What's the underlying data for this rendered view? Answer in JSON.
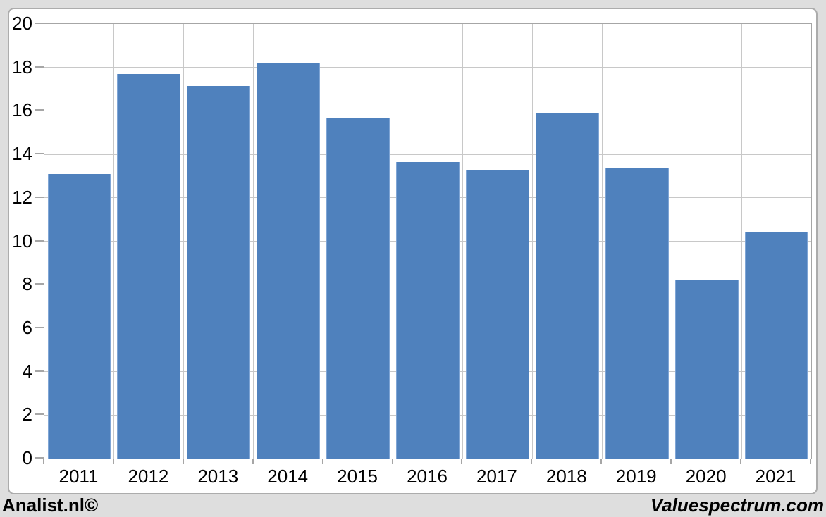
{
  "chart_data": {
    "type": "bar",
    "title": "",
    "xlabel": "",
    "ylabel": "",
    "categories": [
      "2011",
      "2012",
      "2013",
      "2014",
      "2015",
      "2016",
      "2017",
      "2018",
      "2019",
      "2020",
      "2021"
    ],
    "values": [
      13.1,
      17.7,
      17.15,
      18.2,
      15.7,
      13.65,
      13.3,
      15.9,
      13.4,
      8.2,
      10.45
    ],
    "ylim": [
      0,
      20
    ],
    "ytick_step": 2,
    "yticks": [
      0,
      2,
      4,
      6,
      8,
      10,
      12,
      14,
      16,
      18,
      20
    ],
    "grid": true,
    "legend_position": "none",
    "bar_color": "#4F81BD",
    "bar_edge_highlight": "#7FA5D5",
    "gridline_color": "#C8C8C8",
    "axis_color": "#A6A6A6",
    "plot_background": "#FFFFFF",
    "page_background": "#DEDEDE",
    "panel_border_color": "#ACACAC",
    "text_color": "#000000"
  },
  "footer": {
    "left_credit": "Analist.nl©",
    "right_credit": "Valuespectrum.com"
  }
}
